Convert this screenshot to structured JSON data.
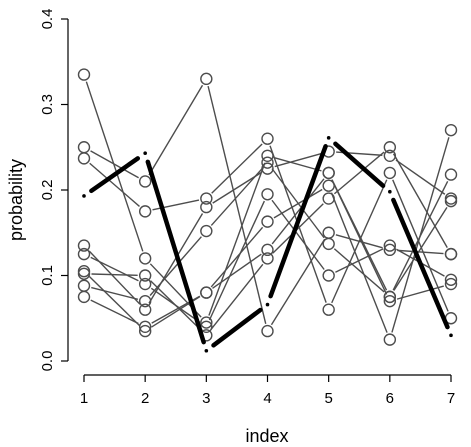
{
  "chart_data": {
    "type": "line",
    "title": "",
    "xlabel": "index",
    "ylabel": "probability",
    "xlim": [
      0.8,
      7.2
    ],
    "ylim": [
      0.0,
      0.4
    ],
    "x": [
      1,
      2,
      3,
      4,
      5,
      6,
      7
    ],
    "x_ticks": [
      "1",
      "2",
      "3",
      "4",
      "5",
      "6",
      "7"
    ],
    "y_ticks": [
      "0.0",
      "0.1",
      "0.2",
      "0.3",
      "0.4"
    ],
    "point_style": "open-circle",
    "series_color": "#4d4d4d",
    "highlight_color": "#000000",
    "series": [
      {
        "values": [
          0.335,
          0.12,
          0.045,
          0.24,
          0.22,
          0.07,
          0.09
        ]
      },
      {
        "values": [
          0.25,
          0.21,
          0.33,
          0.035,
          0.15,
          0.13,
          0.125
        ]
      },
      {
        "values": [
          0.237,
          0.175,
          0.19,
          0.26,
          0.06,
          0.22,
          0.05
        ]
      },
      {
        "values": [
          0.135,
          0.06,
          0.18,
          0.225,
          0.245,
          0.24,
          0.19
        ]
      },
      {
        "values": [
          0.125,
          0.09,
          0.04,
          0.195,
          0.1,
          0.135,
          0.095
        ]
      },
      {
        "values": [
          0.105,
          0.035,
          0.08,
          0.163,
          0.205,
          0.025,
          0.27
        ]
      },
      {
        "values": [
          0.102,
          0.1,
          0.03,
          0.12,
          0.19,
          0.25,
          0.125
        ]
      },
      {
        "values": [
          0.088,
          0.07,
          0.152,
          0.232,
          0.137,
          0.075,
          0.218
        ]
      },
      {
        "values": [
          0.075,
          0.04,
          0.08,
          0.13,
          0.22,
          0.075,
          0.187
        ]
      }
    ],
    "highlight_series": {
      "values": [
        0.193,
        0.243,
        0.012,
        0.066,
        0.261,
        0.198,
        0.03
      ]
    }
  }
}
